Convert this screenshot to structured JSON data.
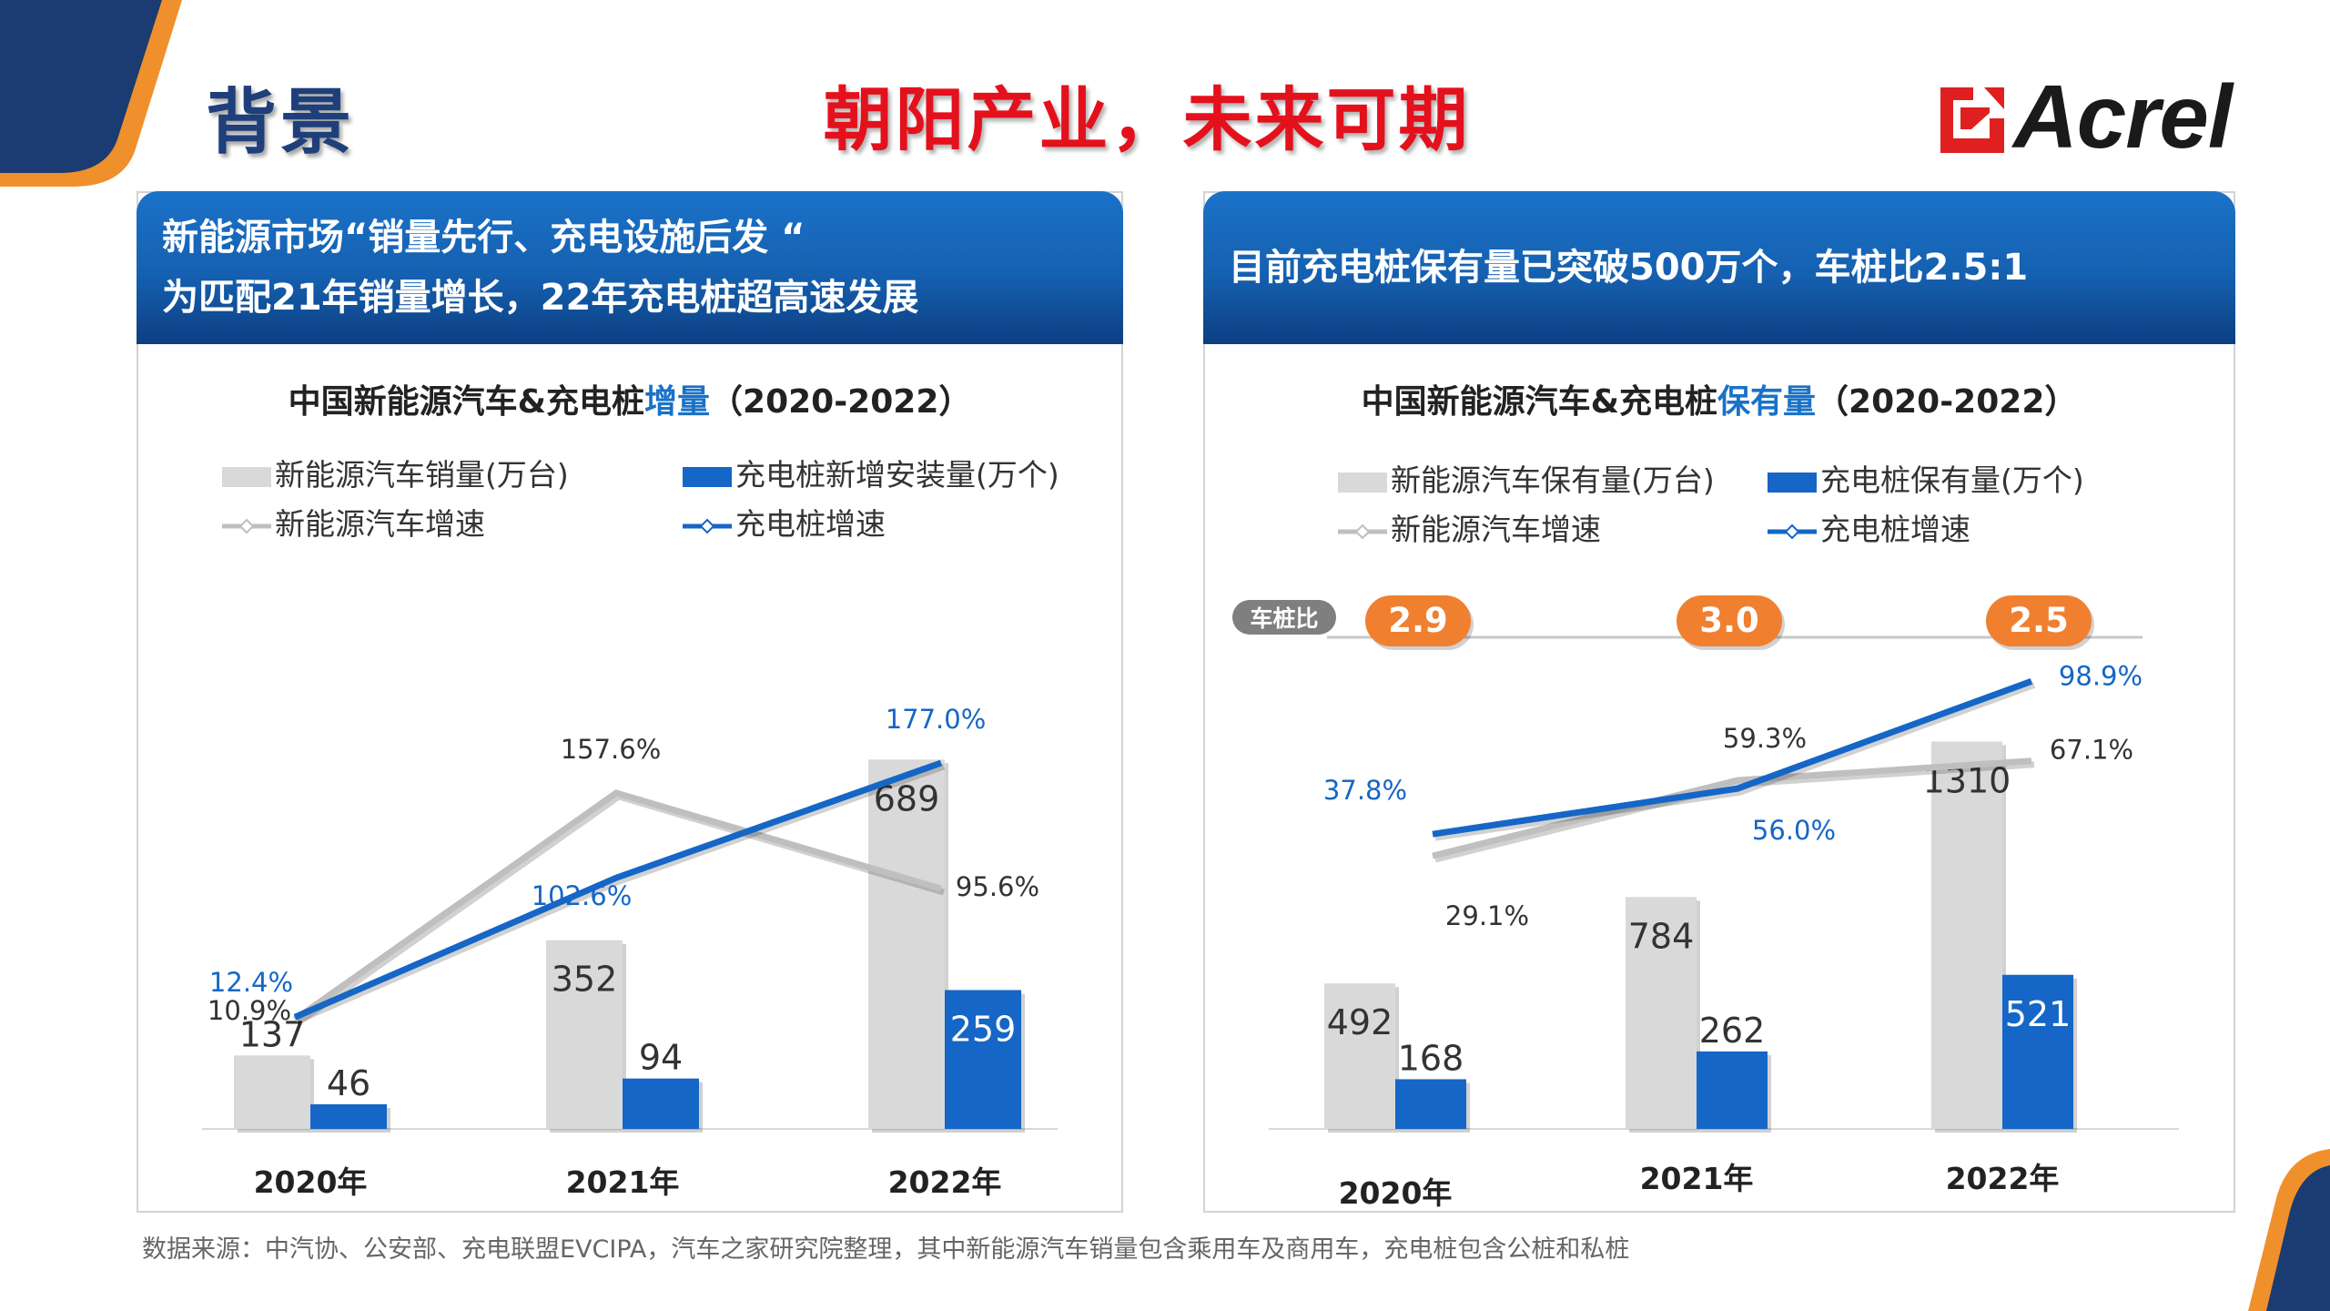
{
  "header": {
    "section_title": "背景",
    "main_title": "朝阳产业，未来可期",
    "logo_text": "Acrel"
  },
  "colors": {
    "brand_blue": "#1566c6",
    "gray_bar": "#d9d9d9",
    "gray_line": "#bfbfbf",
    "orange": "#f08030",
    "title_red": "#e4101c",
    "navy": "#1f3f7a"
  },
  "left_panel": {
    "header_line1": "新能源市场“销量先行、充电设施后发 “",
    "header_line2": "为匹配21年销量增长，22年充电桩超高速发展",
    "title_prefix": "中国新能源汽车&充电桩",
    "title_highlight": "增量",
    "title_suffix": "（2020-2022）",
    "legend": {
      "bar1": "新能源汽车销量(万台)",
      "bar2": "充电桩新增安装量(万个)",
      "line1": "新能源汽车增速",
      "line2": "充电桩增速"
    }
  },
  "right_panel": {
    "header_line1": "目前充电桩保有量已突破500万个，车桩比2.5:1",
    "title_prefix": "中国新能源汽车&充电桩",
    "title_highlight": "保有量",
    "title_suffix": "（2020-2022）",
    "legend": {
      "bar1": "新能源汽车保有量(万台)",
      "bar2": "充电桩保有量(万个)",
      "line1": "新能源汽车增速",
      "line2": "充电桩增速"
    },
    "ratio_label": "车桩比",
    "ratios": [
      "2.9",
      "3.0",
      "2.5"
    ]
  },
  "chart_data": [
    {
      "type": "bar",
      "title": "中国新能源汽车&充电桩增量（2020-2022）",
      "categories": [
        "2020年",
        "2021年",
        "2022年"
      ],
      "series": [
        {
          "name": "新能源汽车销量(万台)",
          "kind": "bar",
          "values": [
            137,
            352,
            689
          ]
        },
        {
          "name": "充电桩新增安装量(万个)",
          "kind": "bar",
          "values": [
            46,
            94,
            259
          ]
        },
        {
          "name": "新能源汽车增速",
          "kind": "line",
          "values": [
            10.9,
            157.6,
            95.6
          ],
          "labels": [
            "10.9%",
            "157.6%",
            "95.6%"
          ]
        },
        {
          "name": "充电桩增速",
          "kind": "line",
          "values": [
            12.4,
            102.6,
            177.0
          ],
          "labels": [
            "12.4%",
            "102.6%",
            "177.0%"
          ]
        }
      ],
      "ylim": [
        0,
        720
      ],
      "ylim_secondary": [
        -60,
        190
      ]
    },
    {
      "type": "bar",
      "title": "中国新能源汽车&充电桩保有量（2020-2022）",
      "categories": [
        "2020年",
        "2021年",
        "2022年"
      ],
      "series": [
        {
          "name": "新能源汽车保有量(万台)",
          "kind": "bar",
          "values": [
            492,
            784,
            1310
          ]
        },
        {
          "name": "充电桩保有量(万个)",
          "kind": "bar",
          "values": [
            168,
            262,
            521
          ]
        },
        {
          "name": "新能源汽车增速",
          "kind": "line",
          "values": [
            29.1,
            59.3,
            67.1
          ],
          "labels": [
            "29.1%",
            "59.3%",
            "67.1%"
          ]
        },
        {
          "name": "充电桩增速",
          "kind": "line",
          "values": [
            37.8,
            56.0,
            98.9
          ],
          "labels": [
            "37.8%",
            "56.0%",
            "98.9%"
          ]
        }
      ],
      "ylim": [
        0,
        1650
      ],
      "ylim_secondary": [
        -80,
        115
      ]
    }
  ],
  "footnote": "数据来源：中汽协、公安部、充电联盟EVCIPA，汽车之家研究院整理，其中新能源汽车销量包含乘用车及商用车，充电桩包含公桩和私桩"
}
